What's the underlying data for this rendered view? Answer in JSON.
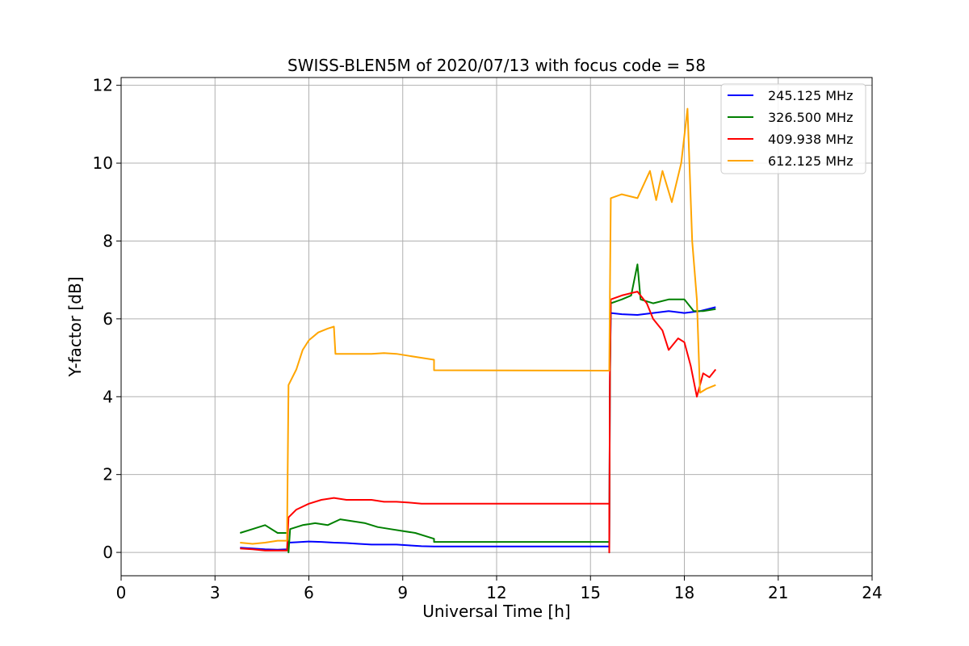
{
  "chart_data": {
    "type": "line",
    "title": "SWISS-BLEN5M of 2020/07/13 with focus code = 58",
    "xlabel": "Universal Time [h]",
    "ylabel": "Y-factor [dB]",
    "xlim": [
      0,
      24
    ],
    "ylim": [
      -0.6,
      12.2
    ],
    "xticks": [
      0,
      3,
      6,
      9,
      12,
      15,
      18,
      21,
      24
    ],
    "xtick_labels": [
      "0",
      "3",
      "6",
      "9",
      "12",
      "15",
      "18",
      "21",
      "24"
    ],
    "yticks": [
      0,
      2,
      4,
      6,
      8,
      10,
      12
    ],
    "ytick_labels": [
      "0",
      "2",
      "4",
      "6",
      "8",
      "10",
      "12"
    ],
    "grid": true,
    "legend_position": "top-right",
    "series": [
      {
        "name": "245.125 MHz",
        "color": "#0000ff",
        "points": [
          [
            3.8,
            0.12
          ],
          [
            4.2,
            0.1
          ],
          [
            4.6,
            0.08
          ],
          [
            5.0,
            0.07
          ],
          [
            5.3,
            0.08
          ],
          [
            5.35,
            0.25
          ],
          [
            5.6,
            0.26
          ],
          [
            6.0,
            0.28
          ],
          [
            6.4,
            0.27
          ],
          [
            6.8,
            0.25
          ],
          [
            7.2,
            0.24
          ],
          [
            7.6,
            0.22
          ],
          [
            8.0,
            0.2
          ],
          [
            8.4,
            0.2
          ],
          [
            8.8,
            0.2
          ],
          [
            9.2,
            0.18
          ],
          [
            9.6,
            0.16
          ],
          [
            10.0,
            0.15
          ],
          [
            15.6,
            0.15
          ],
          [
            15.6,
            0.0
          ],
          [
            15.62,
            4.4
          ],
          [
            15.65,
            6.15
          ],
          [
            16.0,
            6.12
          ],
          [
            16.5,
            6.1
          ],
          [
            17.0,
            6.15
          ],
          [
            17.5,
            6.2
          ],
          [
            18.0,
            6.15
          ],
          [
            18.5,
            6.2
          ],
          [
            19.0,
            6.3
          ]
        ]
      },
      {
        "name": "326.500 MHz",
        "color": "#008000",
        "points": [
          [
            3.8,
            0.5
          ],
          [
            4.2,
            0.6
          ],
          [
            4.6,
            0.7
          ],
          [
            5.0,
            0.5
          ],
          [
            5.3,
            0.5
          ],
          [
            5.35,
            0.0
          ],
          [
            5.4,
            0.6
          ],
          [
            5.8,
            0.7
          ],
          [
            6.2,
            0.75
          ],
          [
            6.6,
            0.7
          ],
          [
            7.0,
            0.85
          ],
          [
            7.4,
            0.8
          ],
          [
            7.8,
            0.75
          ],
          [
            8.2,
            0.65
          ],
          [
            8.6,
            0.6
          ],
          [
            9.0,
            0.55
          ],
          [
            9.4,
            0.5
          ],
          [
            9.8,
            0.4
          ],
          [
            10.0,
            0.35
          ],
          [
            10.0,
            0.27
          ],
          [
            15.6,
            0.27
          ],
          [
            15.6,
            0.0
          ],
          [
            15.62,
            4.2
          ],
          [
            15.65,
            6.4
          ],
          [
            16.0,
            6.5
          ],
          [
            16.3,
            6.6
          ],
          [
            16.5,
            7.4
          ],
          [
            16.6,
            6.5
          ],
          [
            17.0,
            6.4
          ],
          [
            17.5,
            6.5
          ],
          [
            18.0,
            6.5
          ],
          [
            18.3,
            6.2
          ],
          [
            18.6,
            6.2
          ],
          [
            19.0,
            6.25
          ]
        ]
      },
      {
        "name": "409.938 MHz",
        "color": "#ff0000",
        "points": [
          [
            3.8,
            0.1
          ],
          [
            4.2,
            0.08
          ],
          [
            4.6,
            0.05
          ],
          [
            5.0,
            0.05
          ],
          [
            5.3,
            0.05
          ],
          [
            5.35,
            0.9
          ],
          [
            5.6,
            1.1
          ],
          [
            6.0,
            1.25
          ],
          [
            6.4,
            1.35
          ],
          [
            6.8,
            1.4
          ],
          [
            7.2,
            1.35
          ],
          [
            7.6,
            1.35
          ],
          [
            8.0,
            1.35
          ],
          [
            8.4,
            1.3
          ],
          [
            8.8,
            1.3
          ],
          [
            9.2,
            1.28
          ],
          [
            9.6,
            1.25
          ],
          [
            10.0,
            1.25
          ],
          [
            15.6,
            1.25
          ],
          [
            15.6,
            0.0
          ],
          [
            15.62,
            4.5
          ],
          [
            15.65,
            6.5
          ],
          [
            16.0,
            6.6
          ],
          [
            16.5,
            6.7
          ],
          [
            16.8,
            6.4
          ],
          [
            17.0,
            6.0
          ],
          [
            17.3,
            5.7
          ],
          [
            17.5,
            5.2
          ],
          [
            17.8,
            5.5
          ],
          [
            18.0,
            5.4
          ],
          [
            18.2,
            4.8
          ],
          [
            18.4,
            4.0
          ],
          [
            18.6,
            4.6
          ],
          [
            18.8,
            4.5
          ],
          [
            19.0,
            4.7
          ]
        ]
      },
      {
        "name": "612.125 MHz",
        "color": "#ffa500",
        "points": [
          [
            3.8,
            0.25
          ],
          [
            4.2,
            0.22
          ],
          [
            4.6,
            0.25
          ],
          [
            5.0,
            0.3
          ],
          [
            5.3,
            0.3
          ],
          [
            5.35,
            4.3
          ],
          [
            5.6,
            4.7
          ],
          [
            5.8,
            5.2
          ],
          [
            6.0,
            5.45
          ],
          [
            6.3,
            5.65
          ],
          [
            6.6,
            5.75
          ],
          [
            6.8,
            5.8
          ],
          [
            6.85,
            5.1
          ],
          [
            7.2,
            5.1
          ],
          [
            7.6,
            5.1
          ],
          [
            8.0,
            5.1
          ],
          [
            8.4,
            5.12
          ],
          [
            8.8,
            5.1
          ],
          [
            9.2,
            5.05
          ],
          [
            9.6,
            5.0
          ],
          [
            10.0,
            4.95
          ],
          [
            10.0,
            4.68
          ],
          [
            15.6,
            4.67
          ],
          [
            15.62,
            6.6
          ],
          [
            15.65,
            9.1
          ],
          [
            16.0,
            9.2
          ],
          [
            16.5,
            9.1
          ],
          [
            16.9,
            9.8
          ],
          [
            17.1,
            9.05
          ],
          [
            17.3,
            9.8
          ],
          [
            17.6,
            9.0
          ],
          [
            17.9,
            10.0
          ],
          [
            18.1,
            11.4
          ],
          [
            18.25,
            8.0
          ],
          [
            18.4,
            6.5
          ],
          [
            18.5,
            4.1
          ],
          [
            18.7,
            4.2
          ],
          [
            19.0,
            4.3
          ]
        ]
      }
    ]
  }
}
